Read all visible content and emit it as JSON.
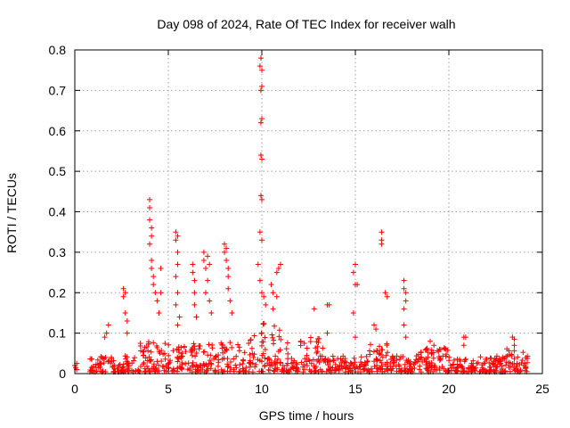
{
  "chart_data": {
    "type": "scatter",
    "title": "Day 098 of 2024, Rate Of TEC Index for receiver walh",
    "xlabel": "GPS time / hours",
    "ylabel": "ROTI / TECUs",
    "xlim": [
      0,
      25
    ],
    "ylim": [
      0,
      0.8
    ],
    "xticks": [
      0,
      5,
      10,
      15,
      20,
      25
    ],
    "xtick_labels": [
      "0",
      "5",
      "10",
      "15",
      "20",
      "25"
    ],
    "yticks": [
      0,
      0.1,
      0.2,
      0.3,
      0.4,
      0.5,
      0.6,
      0.7,
      0.8
    ],
    "ytick_labels": [
      "0",
      "0.1",
      "0.2",
      "0.3",
      "0.4",
      "0.5",
      "0.6",
      "0.7",
      "0.8"
    ],
    "grid": true,
    "marker": "+",
    "marker_color": "#ff0000",
    "series": [
      {
        "name": "ROTI",
        "points": [
          [
            0.0,
            0.02
          ],
          [
            0.05,
            0.015
          ],
          [
            0.1,
            0.025
          ],
          [
            0.1,
            0.01
          ],
          [
            1.6,
            0.09
          ],
          [
            1.7,
            0.1
          ],
          [
            1.8,
            0.12
          ],
          [
            2.6,
            0.21
          ],
          [
            2.6,
            0.19
          ],
          [
            2.7,
            0.2
          ],
          [
            2.7,
            0.15
          ],
          [
            2.8,
            0.13
          ],
          [
            2.8,
            0.1
          ],
          [
            4.0,
            0.43
          ],
          [
            4.0,
            0.41
          ],
          [
            4.0,
            0.38
          ],
          [
            4.1,
            0.36
          ],
          [
            4.1,
            0.34
          ],
          [
            4.0,
            0.32
          ],
          [
            4.1,
            0.28
          ],
          [
            4.1,
            0.26
          ],
          [
            4.2,
            0.24
          ],
          [
            4.2,
            0.22
          ],
          [
            4.3,
            0.2
          ],
          [
            4.4,
            0.18
          ],
          [
            4.5,
            0.15
          ],
          [
            4.6,
            0.26
          ],
          [
            4.6,
            0.2
          ],
          [
            5.4,
            0.35
          ],
          [
            5.4,
            0.33
          ],
          [
            5.5,
            0.34
          ],
          [
            5.5,
            0.3
          ],
          [
            5.5,
            0.27
          ],
          [
            5.4,
            0.24
          ],
          [
            5.5,
            0.2
          ],
          [
            5.4,
            0.17
          ],
          [
            5.6,
            0.14
          ],
          [
            5.5,
            0.12
          ],
          [
            6.3,
            0.27
          ],
          [
            6.3,
            0.25
          ],
          [
            6.4,
            0.23
          ],
          [
            6.4,
            0.2
          ],
          [
            6.4,
            0.17
          ],
          [
            6.5,
            0.14
          ],
          [
            6.9,
            0.3
          ],
          [
            6.9,
            0.28
          ],
          [
            7.0,
            0.26
          ],
          [
            7.1,
            0.29
          ],
          [
            7.1,
            0.23
          ],
          [
            7.0,
            0.2
          ],
          [
            7.2,
            0.27
          ],
          [
            7.2,
            0.18
          ],
          [
            7.3,
            0.15
          ],
          [
            8.0,
            0.32
          ],
          [
            8.0,
            0.3
          ],
          [
            8.1,
            0.31
          ],
          [
            8.1,
            0.28
          ],
          [
            8.2,
            0.26
          ],
          [
            8.2,
            0.24
          ],
          [
            8.2,
            0.21
          ],
          [
            8.3,
            0.18
          ],
          [
            8.4,
            0.15
          ],
          [
            9.8,
            0.27
          ],
          [
            9.9,
            0.23
          ],
          [
            9.9,
            0.35
          ],
          [
            10.0,
            0.33
          ],
          [
            9.95,
            0.44
          ],
          [
            10.0,
            0.43
          ],
          [
            9.95,
            0.54
          ],
          [
            10.0,
            0.53
          ],
          [
            9.95,
            0.62
          ],
          [
            10.0,
            0.63
          ],
          [
            9.95,
            0.7
          ],
          [
            10.0,
            0.71
          ],
          [
            9.9,
            0.76
          ],
          [
            10.0,
            0.75
          ],
          [
            9.95,
            0.78
          ],
          [
            10.0,
            0.2
          ],
          [
            10.1,
            0.19
          ],
          [
            10.2,
            0.17
          ],
          [
            10.5,
            0.22
          ],
          [
            10.6,
            0.2
          ],
          [
            10.8,
            0.25
          ],
          [
            10.9,
            0.26
          ],
          [
            11.0,
            0.27
          ],
          [
            10.8,
            0.19
          ],
          [
            10.6,
            0.16
          ],
          [
            12.8,
            0.16
          ],
          [
            13.5,
            0.17
          ],
          [
            13.6,
            0.17
          ],
          [
            13.5,
            0.1
          ],
          [
            15.0,
            0.27
          ],
          [
            14.9,
            0.25
          ],
          [
            15.0,
            0.22
          ],
          [
            15.1,
            0.22
          ],
          [
            14.9,
            0.15
          ],
          [
            15.0,
            0.09
          ],
          [
            16.4,
            0.35
          ],
          [
            16.4,
            0.33
          ],
          [
            16.4,
            0.32
          ],
          [
            16.6,
            0.2
          ],
          [
            16.7,
            0.19
          ],
          [
            16.0,
            0.12
          ],
          [
            16.1,
            0.11
          ],
          [
            17.6,
            0.23
          ],
          [
            17.6,
            0.21
          ],
          [
            17.7,
            0.2
          ],
          [
            17.7,
            0.18
          ],
          [
            17.6,
            0.16
          ],
          [
            17.6,
            0.12
          ],
          [
            17.7,
            0.09
          ],
          [
            19.0,
            0.08
          ],
          [
            19.2,
            0.07
          ],
          [
            19.5,
            0.06
          ],
          [
            20.8,
            0.09
          ],
          [
            20.9,
            0.09
          ],
          [
            20.8,
            0.07
          ],
          [
            23.4,
            0.09
          ],
          [
            23.5,
            0.085
          ],
          [
            23.5,
            0.07
          ],
          [
            24.0,
            0.02
          ],
          [
            24.1,
            0.015
          ]
        ]
      }
    ]
  }
}
